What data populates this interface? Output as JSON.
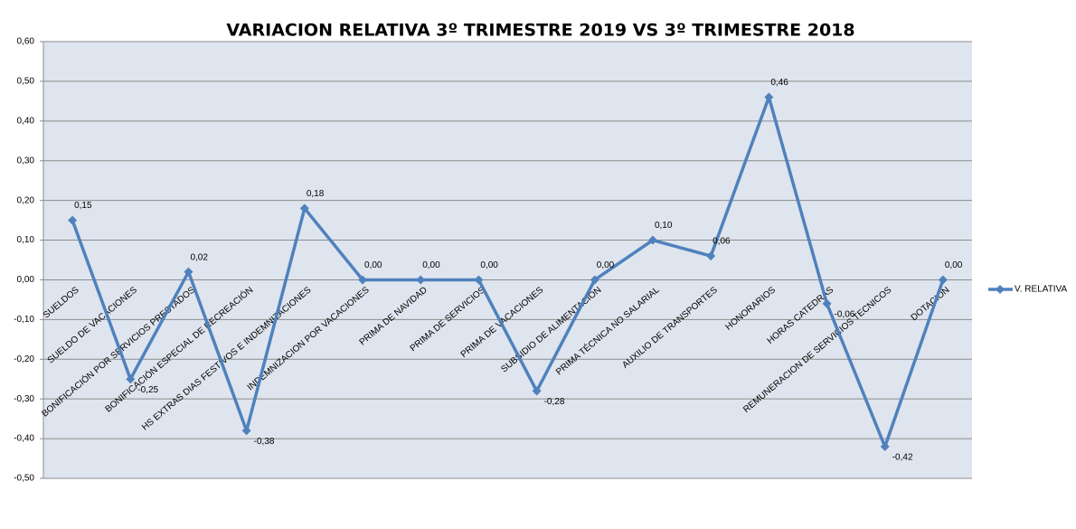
{
  "chart_data": {
    "type": "line",
    "title": "VARIACION  RELATIVA  3º TRIMESTRE 2019 VS 3º TRIMESTRE 2018",
    "categories": [
      "SUELDOS",
      "SUELDO DE VACACIONES",
      "BONIFICACIÓN POR SERVICIOS PRESTADOS",
      "BONIFICACIÓN ESPECIAL DE RECREACIÓN",
      "HS EXTRAS DIAS FESTIVOS E INDEMNIZACIONES",
      "INDEMNIZACION POR VACACIONES",
      "PRIMA DE NAVIDAD",
      "PRIMA DE SERVICIOS",
      "PRIMA DE VACACIONES",
      "SUBSIDIO DE ALIMENTACION",
      "PRIMA TÉCNICA NO SALARIAL",
      "AUXILIO DE TRANSPORTES",
      "HONORARIOS",
      "HORAS CATEDRAS",
      "REMUNERACION DE SERVICIOS TECNICOS",
      "DOTACIÓN"
    ],
    "series": [
      {
        "name": "V. RELATIVA",
        "color": "#4f81bd",
        "values": [
          0.15,
          -0.25,
          0.02,
          -0.38,
          0.18,
          0,
          0,
          0,
          -0.28,
          0,
          0.1,
          0.06,
          0.46,
          -0.06,
          -0.42,
          0
        ],
        "value_labels": [
          "0,15",
          "-0,25",
          "0,02",
          "-0,38",
          "0,18",
          "0,00",
          "0,00",
          "0,00",
          "-0,28",
          "0,00",
          "0,10",
          "0,06",
          "0,46",
          "-0,06",
          "-0,42",
          "0,00"
        ]
      }
    ],
    "ylim": [
      -0.5,
      0.6
    ],
    "yticks": [
      {
        "value": -0.5,
        "label": "-0,50"
      },
      {
        "value": -0.4,
        "label": "-0,40"
      },
      {
        "value": -0.3,
        "label": "-0,30"
      },
      {
        "value": -0.2,
        "label": "-0,20"
      },
      {
        "value": -0.1,
        "label": "-0,10"
      },
      {
        "value": 0,
        "label": "0,00"
      },
      {
        "value": 0.1,
        "label": "0,10"
      },
      {
        "value": 0.2,
        "label": "0,20"
      },
      {
        "value": 0.3,
        "label": "0,30"
      },
      {
        "value": 0.4,
        "label": "0,40"
      },
      {
        "value": 0.5,
        "label": "0,50"
      },
      {
        "value": 0.6,
        "label": "0,60"
      }
    ],
    "grid": true,
    "legend": "right"
  }
}
